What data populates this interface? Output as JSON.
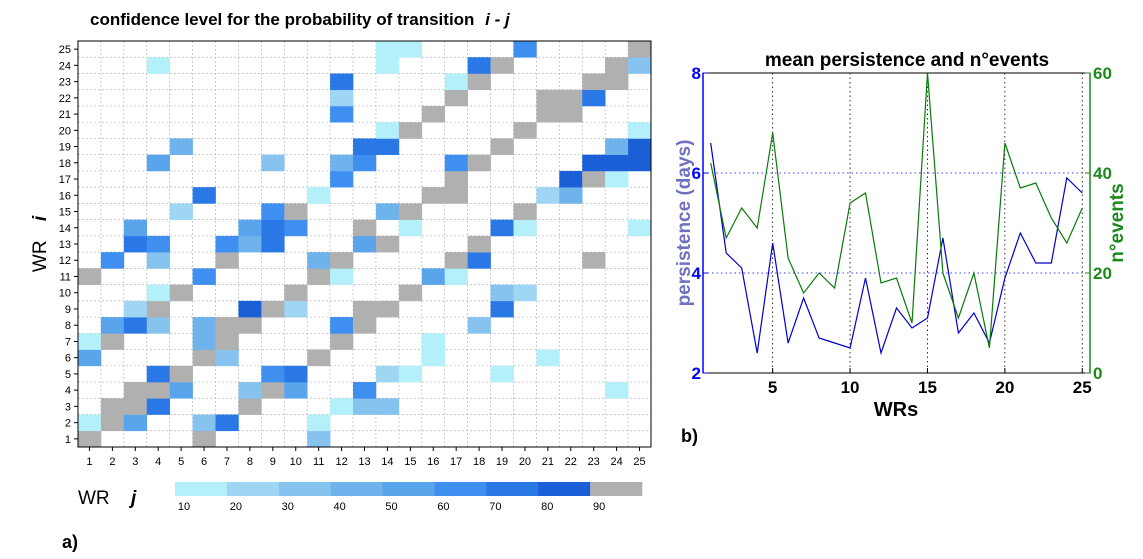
{
  "chart_data": [
    {
      "type": "heatmap",
      "title": "confidence level for the probability of transition",
      "title_vars": "i - j",
      "panel_label": "a)",
      "xlabel": "WR",
      "xlabel_var": "j",
      "ylabel": "WR",
      "ylabel_var": "i",
      "x_ticks": [
        "1",
        "2",
        "3",
        "4",
        "5",
        "6",
        "7",
        "8",
        "9",
        "10",
        "11",
        "12",
        "13",
        "14",
        "15",
        "16",
        "17",
        "18",
        "19",
        "20",
        "21",
        "22",
        "23",
        "24",
        "25"
      ],
      "y_ticks": [
        "1",
        "2",
        "3",
        "4",
        "5",
        "6",
        "7",
        "8",
        "9",
        "10",
        "11",
        "12",
        "13",
        "14",
        "15",
        "16",
        "17",
        "18",
        "19",
        "20",
        "21",
        "22",
        "23",
        "24",
        "25"
      ],
      "colorbar_labels": [
        "10",
        "20",
        "30",
        "40",
        "50",
        "60",
        "70",
        "80",
        "90"
      ],
      "colorbar_colors": [
        "#b4f0fa",
        "#9fd6f4",
        "#87c3ef",
        "#6fb3ec",
        "#5aa4ec",
        "#3f8ff0",
        "#2a78e6",
        "#1a5fd6",
        "#b0b0b0"
      ],
      "grid": true,
      "cells": [
        {
          "j": 1,
          "i": 1,
          "level": 8
        },
        {
          "j": 6,
          "i": 1,
          "level": 8
        },
        {
          "j": 11,
          "i": 1,
          "level": 2
        },
        {
          "j": 1,
          "i": 2,
          "level": 0
        },
        {
          "j": 2,
          "i": 2,
          "level": 8
        },
        {
          "j": 3,
          "i": 2,
          "level": 4
        },
        {
          "j": 6,
          "i": 2,
          "level": 2
        },
        {
          "j": 7,
          "i": 2,
          "level": 6
        },
        {
          "j": 11,
          "i": 2,
          "level": 0
        },
        {
          "j": 2,
          "i": 3,
          "level": 8
        },
        {
          "j": 3,
          "i": 3,
          "level": 8
        },
        {
          "j": 4,
          "i": 3,
          "level": 6
        },
        {
          "j": 8,
          "i": 3,
          "level": 8
        },
        {
          "j": 12,
          "i": 3,
          "level": 0
        },
        {
          "j": 13,
          "i": 3,
          "level": 2
        },
        {
          "j": 14,
          "i": 3,
          "level": 2
        },
        {
          "j": 3,
          "i": 4,
          "level": 8
        },
        {
          "j": 4,
          "i": 4,
          "level": 8
        },
        {
          "j": 5,
          "i": 4,
          "level": 4
        },
        {
          "j": 8,
          "i": 4,
          "level": 2
        },
        {
          "j": 9,
          "i": 4,
          "level": 8
        },
        {
          "j": 10,
          "i": 4,
          "level": 4
        },
        {
          "j": 13,
          "i": 4,
          "level": 5
        },
        {
          "j": 24,
          "i": 4,
          "level": 0
        },
        {
          "j": 4,
          "i": 5,
          "level": 6
        },
        {
          "j": 5,
          "i": 5,
          "level": 8
        },
        {
          "j": 9,
          "i": 5,
          "level": 5
        },
        {
          "j": 10,
          "i": 5,
          "level": 6
        },
        {
          "j": 14,
          "i": 5,
          "level": 1
        },
        {
          "j": 15,
          "i": 5,
          "level": 0
        },
        {
          "j": 19,
          "i": 5,
          "level": 0
        },
        {
          "j": 1,
          "i": 6,
          "level": 4
        },
        {
          "j": 6,
          "i": 6,
          "level": 8
        },
        {
          "j": 7,
          "i": 6,
          "level": 2
        },
        {
          "j": 11,
          "i": 6,
          "level": 8
        },
        {
          "j": 16,
          "i": 6,
          "level": 0
        },
        {
          "j": 21,
          "i": 6,
          "level": 0
        },
        {
          "j": 1,
          "i": 7,
          "level": 0
        },
        {
          "j": 2,
          "i": 7,
          "level": 8
        },
        {
          "j": 6,
          "i": 7,
          "level": 3
        },
        {
          "j": 7,
          "i": 7,
          "level": 8
        },
        {
          "j": 12,
          "i": 7,
          "level": 8
        },
        {
          "j": 16,
          "i": 7,
          "level": 0
        },
        {
          "j": 2,
          "i": 8,
          "level": 4
        },
        {
          "j": 3,
          "i": 8,
          "level": 6
        },
        {
          "j": 4,
          "i": 8,
          "level": 2
        },
        {
          "j": 6,
          "i": 8,
          "level": 3
        },
        {
          "j": 7,
          "i": 8,
          "level": 8
        },
        {
          "j": 8,
          "i": 8,
          "level": 8
        },
        {
          "j": 12,
          "i": 8,
          "level": 5
        },
        {
          "j": 13,
          "i": 8,
          "level": 8
        },
        {
          "j": 18,
          "i": 8,
          "level": 2
        },
        {
          "j": 3,
          "i": 9,
          "level": 1
        },
        {
          "j": 4,
          "i": 9,
          "level": 8
        },
        {
          "j": 8,
          "i": 9,
          "level": 7
        },
        {
          "j": 9,
          "i": 9,
          "level": 8
        },
        {
          "j": 10,
          "i": 9,
          "level": 1
        },
        {
          "j": 13,
          "i": 9,
          "level": 8
        },
        {
          "j": 14,
          "i": 9,
          "level": 8
        },
        {
          "j": 19,
          "i": 9,
          "level": 6
        },
        {
          "j": 4,
          "i": 10,
          "level": 0
        },
        {
          "j": 5,
          "i": 10,
          "level": 8
        },
        {
          "j": 10,
          "i": 10,
          "level": 8
        },
        {
          "j": 15,
          "i": 10,
          "level": 8
        },
        {
          "j": 19,
          "i": 10,
          "level": 2
        },
        {
          "j": 20,
          "i": 10,
          "level": 1
        },
        {
          "j": 1,
          "i": 11,
          "level": 8
        },
        {
          "j": 6,
          "i": 11,
          "level": 5
        },
        {
          "j": 11,
          "i": 11,
          "level": 8
        },
        {
          "j": 12,
          "i": 11,
          "level": 0
        },
        {
          "j": 16,
          "i": 11,
          "level": 4
        },
        {
          "j": 17,
          "i": 11,
          "level": 0
        },
        {
          "j": 2,
          "i": 12,
          "level": 5
        },
        {
          "j": 4,
          "i": 12,
          "level": 2
        },
        {
          "j": 7,
          "i": 12,
          "level": 8
        },
        {
          "j": 11,
          "i": 12,
          "level": 3
        },
        {
          "j": 12,
          "i": 12,
          "level": 8
        },
        {
          "j": 17,
          "i": 12,
          "level": 8
        },
        {
          "j": 18,
          "i": 12,
          "level": 6
        },
        {
          "j": 23,
          "i": 12,
          "level": 8
        },
        {
          "j": 3,
          "i": 13,
          "level": 6
        },
        {
          "j": 4,
          "i": 13,
          "level": 5
        },
        {
          "j": 7,
          "i": 13,
          "level": 5
        },
        {
          "j": 8,
          "i": 13,
          "level": 3
        },
        {
          "j": 9,
          "i": 13,
          "level": 6
        },
        {
          "j": 13,
          "i": 13,
          "level": 4
        },
        {
          "j": 14,
          "i": 13,
          "level": 8
        },
        {
          "j": 18,
          "i": 13,
          "level": 8
        },
        {
          "j": 3,
          "i": 14,
          "level": 4
        },
        {
          "j": 8,
          "i": 14,
          "level": 4
        },
        {
          "j": 9,
          "i": 14,
          "level": 6
        },
        {
          "j": 10,
          "i": 14,
          "level": 5
        },
        {
          "j": 13,
          "i": 14,
          "level": 8
        },
        {
          "j": 15,
          "i": 14,
          "level": 0
        },
        {
          "j": 19,
          "i": 14,
          "level": 6
        },
        {
          "j": 20,
          "i": 14,
          "level": 0
        },
        {
          "j": 25,
          "i": 14,
          "level": 0
        },
        {
          "j": 5,
          "i": 15,
          "level": 1
        },
        {
          "j": 9,
          "i": 15,
          "level": 5
        },
        {
          "j": 10,
          "i": 15,
          "level": 8
        },
        {
          "j": 14,
          "i": 15,
          "level": 3
        },
        {
          "j": 15,
          "i": 15,
          "level": 8
        },
        {
          "j": 20,
          "i": 15,
          "level": 8
        },
        {
          "j": 6,
          "i": 16,
          "level": 6
        },
        {
          "j": 11,
          "i": 16,
          "level": 0
        },
        {
          "j": 16,
          "i": 16,
          "level": 8
        },
        {
          "j": 17,
          "i": 16,
          "level": 8
        },
        {
          "j": 21,
          "i": 16,
          "level": 1
        },
        {
          "j": 22,
          "i": 16,
          "level": 3
        },
        {
          "j": 12,
          "i": 17,
          "level": 5
        },
        {
          "j": 17,
          "i": 17,
          "level": 8
        },
        {
          "j": 22,
          "i": 17,
          "level": 7
        },
        {
          "j": 23,
          "i": 17,
          "level": 8
        },
        {
          "j": 24,
          "i": 17,
          "level": 0
        },
        {
          "j": 4,
          "i": 18,
          "level": 4
        },
        {
          "j": 9,
          "i": 18,
          "level": 2
        },
        {
          "j": 12,
          "i": 18,
          "level": 3
        },
        {
          "j": 13,
          "i": 18,
          "level": 5
        },
        {
          "j": 17,
          "i": 18,
          "level": 5
        },
        {
          "j": 18,
          "i": 18,
          "level": 8
        },
        {
          "j": 23,
          "i": 18,
          "level": 7
        },
        {
          "j": 24,
          "i": 18,
          "level": 7
        },
        {
          "j": 25,
          "i": 18,
          "level": 7
        },
        {
          "j": 5,
          "i": 19,
          "level": 3
        },
        {
          "j": 13,
          "i": 19,
          "level": 6
        },
        {
          "j": 14,
          "i": 19,
          "level": 6
        },
        {
          "j": 19,
          "i": 19,
          "level": 8
        },
        {
          "j": 24,
          "i": 19,
          "level": 3
        },
        {
          "j": 25,
          "i": 19,
          "level": 7
        },
        {
          "j": 14,
          "i": 20,
          "level": 0
        },
        {
          "j": 15,
          "i": 20,
          "level": 8
        },
        {
          "j": 20,
          "i": 20,
          "level": 8
        },
        {
          "j": 25,
          "i": 20,
          "level": 0
        },
        {
          "j": 12,
          "i": 21,
          "level": 5
        },
        {
          "j": 16,
          "i": 21,
          "level": 8
        },
        {
          "j": 21,
          "i": 21,
          "level": 8
        },
        {
          "j": 22,
          "i": 21,
          "level": 8
        },
        {
          "j": 12,
          "i": 22,
          "level": 1
        },
        {
          "j": 17,
          "i": 22,
          "level": 8
        },
        {
          "j": 21,
          "i": 22,
          "level": 8
        },
        {
          "j": 22,
          "i": 22,
          "level": 8
        },
        {
          "j": 23,
          "i": 22,
          "level": 6
        },
        {
          "j": 12,
          "i": 23,
          "level": 6
        },
        {
          "j": 17,
          "i": 23,
          "level": 0
        },
        {
          "j": 18,
          "i": 23,
          "level": 8
        },
        {
          "j": 23,
          "i": 23,
          "level": 8
        },
        {
          "j": 24,
          "i": 23,
          "level": 8
        },
        {
          "j": 4,
          "i": 24,
          "level": 0
        },
        {
          "j": 14,
          "i": 24,
          "level": 0
        },
        {
          "j": 18,
          "i": 24,
          "level": 6
        },
        {
          "j": 19,
          "i": 24,
          "level": 8
        },
        {
          "j": 24,
          "i": 24,
          "level": 8
        },
        {
          "j": 25,
          "i": 24,
          "level": 2
        },
        {
          "j": 14,
          "i": 25,
          "level": 0
        },
        {
          "j": 15,
          "i": 25,
          "level": 0
        },
        {
          "j": 20,
          "i": 25,
          "level": 5
        },
        {
          "j": 25,
          "i": 25,
          "level": 8
        }
      ]
    },
    {
      "type": "line",
      "title": "mean persistence and n°events",
      "panel_label": "b)",
      "xlabel": "WRs",
      "ylabel_left": "persistence (days)",
      "ylabel_right": "n°events",
      "x_ticks": [
        5,
        10,
        15,
        20,
        25
      ],
      "xlim": [
        0.5,
        25.5
      ],
      "ylim_left": [
        2,
        8
      ],
      "y_ticks_left": [
        2,
        4,
        6,
        8
      ],
      "ylim_right": [
        0,
        60
      ],
      "y_ticks_right": [
        0,
        20,
        40,
        60
      ],
      "grid": "dotted",
      "x": [
        1,
        2,
        3,
        4,
        5,
        6,
        7,
        8,
        9,
        10,
        11,
        12,
        13,
        14,
        15,
        16,
        17,
        18,
        19,
        20,
        21,
        22,
        23,
        24,
        25
      ],
      "series": [
        {
          "axis": "left",
          "color": "#0000cc",
          "values": [
            6.6,
            4.4,
            4.1,
            2.4,
            4.6,
            2.6,
            3.5,
            2.7,
            2.6,
            2.5,
            3.9,
            2.4,
            3.3,
            2.9,
            3.1,
            4.7,
            2.8,
            3.2,
            2.6,
            3.9,
            4.8,
            4.2,
            4.2,
            5.9,
            5.6
          ]
        },
        {
          "axis": "right",
          "color": "#0a7a0a",
          "values": [
            42,
            27,
            33,
            29,
            48,
            23,
            16,
            20,
            17,
            34,
            36,
            18,
            19,
            10,
            60,
            20,
            11,
            20,
            5,
            46,
            37,
            38,
            31,
            26,
            33
          ]
        }
      ],
      "colors": {
        "left_axis": "#0000ff",
        "left_label": "#7070c0",
        "right_axis": "#1a8a1a"
      }
    }
  ]
}
